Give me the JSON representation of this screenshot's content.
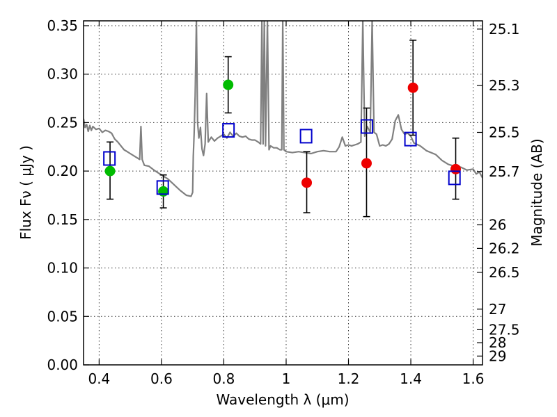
{
  "chart_data": {
    "type": "scatter",
    "title": "",
    "xlabel": "Wavelength  λ (μm)",
    "ylabel": "Flux  Fν  ( μJy )",
    "ylabel_right": "Magnitude (AB)",
    "xlim": [
      0.35,
      1.63
    ],
    "ylim": [
      0.0,
      0.355
    ],
    "grid": true,
    "legend": "none",
    "x_ticks": [
      0.4,
      0.6,
      0.8,
      1.0,
      1.2,
      1.4,
      1.6
    ],
    "x_tick_labels": [
      "0.4",
      "0.6",
      "0.8",
      "1",
      "1.2",
      "1.4",
      "1.6"
    ],
    "y_ticks": [
      0.0,
      0.05,
      0.1,
      0.15,
      0.2,
      0.25,
      0.3,
      0.35
    ],
    "y_tick_labels": [
      "0.00",
      "0.05",
      "0.10",
      "0.15",
      "0.20",
      "0.25",
      "0.30",
      "0.35"
    ],
    "right_ticks": [
      {
        "flux": 0.3465,
        "label": "25.1"
      },
      {
        "flux": 0.2884,
        "label": "25.3"
      },
      {
        "flux": 0.2399,
        "label": "25.5"
      },
      {
        "flux": 0.1995,
        "label": "25.7"
      },
      {
        "flux": 0.1445,
        "label": "26"
      },
      {
        "flux": 0.1202,
        "label": "26.2"
      },
      {
        "flux": 0.0955,
        "label": "26.5"
      },
      {
        "flux": 0.0575,
        "label": "27"
      },
      {
        "flux": 0.0363,
        "label": "27.5"
      },
      {
        "flux": 0.0229,
        "label": "28"
      },
      {
        "flux": 0.0091,
        "label": "29"
      }
    ],
    "series": [
      {
        "marker": "green-circle",
        "color": "#00bb00",
        "points": [
          {
            "x": 0.435,
            "y": 0.2,
            "err_lo": 0.171,
            "err_hi": 0.23
          },
          {
            "x": 0.606,
            "y": 0.179,
            "err_lo": 0.162,
            "err_hi": 0.196
          },
          {
            "x": 0.814,
            "y": 0.289,
            "err_lo": 0.26,
            "err_hi": 0.318
          }
        ]
      },
      {
        "marker": "red-circle",
        "color": "#ee0000",
        "points": [
          {
            "x": 1.066,
            "y": 0.188,
            "err_lo": 0.157,
            "err_hi": 0.22
          },
          {
            "x": 1.258,
            "y": 0.208,
            "err_lo": 0.153,
            "err_hi": 0.265
          },
          {
            "x": 1.407,
            "y": 0.286,
            "err_lo": 0.237,
            "err_hi": 0.335
          },
          {
            "x": 1.544,
            "y": 0.202,
            "err_lo": 0.171,
            "err_hi": 0.234
          }
        ]
      },
      {
        "marker": "blue-open-square",
        "color": "#0000cc",
        "points": [
          {
            "x": 0.433,
            "y": 0.213
          },
          {
            "x": 0.604,
            "y": 0.183
          },
          {
            "x": 0.815,
            "y": 0.242
          },
          {
            "x": 1.064,
            "y": 0.236
          },
          {
            "x": 1.259,
            "y": 0.246
          },
          {
            "x": 1.399,
            "y": 0.233
          },
          {
            "x": 1.54,
            "y": 0.193
          }
        ]
      }
    ],
    "spectrum": {
      "color": "#808080",
      "points": [
        [
          0.35,
          0.254
        ],
        [
          0.355,
          0.245
        ],
        [
          0.36,
          0.248
        ],
        [
          0.365,
          0.241
        ],
        [
          0.37,
          0.247
        ],
        [
          0.375,
          0.242
        ],
        [
          0.38,
          0.246
        ],
        [
          0.39,
          0.243
        ],
        [
          0.4,
          0.244
        ],
        [
          0.41,
          0.24
        ],
        [
          0.42,
          0.242
        ],
        [
          0.43,
          0.241
        ],
        [
          0.44,
          0.239
        ],
        [
          0.45,
          0.233
        ],
        [
          0.46,
          0.23
        ],
        [
          0.47,
          0.226
        ],
        [
          0.48,
          0.222
        ],
        [
          0.49,
          0.22
        ],
        [
          0.5,
          0.218
        ],
        [
          0.51,
          0.216
        ],
        [
          0.52,
          0.214
        ],
        [
          0.53,
          0.212
        ],
        [
          0.534,
          0.246
        ],
        [
          0.538,
          0.212
        ],
        [
          0.545,
          0.206
        ],
        [
          0.56,
          0.205
        ],
        [
          0.58,
          0.2
        ],
        [
          0.6,
          0.196
        ],
        [
          0.62,
          0.192
        ],
        [
          0.64,
          0.186
        ],
        [
          0.66,
          0.18
        ],
        [
          0.68,
          0.175
        ],
        [
          0.695,
          0.174
        ],
        [
          0.7,
          0.178
        ],
        [
          0.702,
          0.215
        ],
        [
          0.705,
          0.24
        ],
        [
          0.708,
          0.278
        ],
        [
          0.712,
          0.355
        ],
        [
          0.716,
          0.25
        ],
        [
          0.72,
          0.234
        ],
        [
          0.725,
          0.245
        ],
        [
          0.73,
          0.223
        ],
        [
          0.735,
          0.216
        ],
        [
          0.74,
          0.228
        ],
        [
          0.745,
          0.28
        ],
        [
          0.75,
          0.23
        ],
        [
          0.76,
          0.235
        ],
        [
          0.77,
          0.231
        ],
        [
          0.78,
          0.234
        ],
        [
          0.79,
          0.236
        ],
        [
          0.8,
          0.238
        ],
        [
          0.81,
          0.234
        ],
        [
          0.82,
          0.24
        ],
        [
          0.83,
          0.236
        ],
        [
          0.84,
          0.239
        ],
        [
          0.85,
          0.236
        ],
        [
          0.86,
          0.235
        ],
        [
          0.87,
          0.236
        ],
        [
          0.88,
          0.233
        ],
        [
          0.89,
          0.232
        ],
        [
          0.9,
          0.232
        ],
        [
          0.91,
          0.23
        ],
        [
          0.918,
          0.228
        ],
        [
          0.922,
          0.355
        ],
        [
          0.926,
          0.228
        ],
        [
          0.93,
          0.355
        ],
        [
          0.934,
          0.226
        ],
        [
          0.94,
          0.355
        ],
        [
          0.945,
          0.222
        ],
        [
          0.95,
          0.226
        ],
        [
          0.96,
          0.224
        ],
        [
          0.97,
          0.224
        ],
        [
          0.98,
          0.222
        ],
        [
          0.986,
          0.222
        ],
        [
          0.989,
          0.355
        ],
        [
          0.993,
          0.222
        ],
        [
          1.0,
          0.22
        ],
        [
          1.02,
          0.219
        ],
        [
          1.04,
          0.22
        ],
        [
          1.06,
          0.219
        ],
        [
          1.08,
          0.218
        ],
        [
          1.1,
          0.22
        ],
        [
          1.12,
          0.221
        ],
        [
          1.14,
          0.22
        ],
        [
          1.16,
          0.22
        ],
        [
          1.17,
          0.225
        ],
        [
          1.18,
          0.235
        ],
        [
          1.19,
          0.226
        ],
        [
          1.2,
          0.227
        ],
        [
          1.21,
          0.226
        ],
        [
          1.22,
          0.227
        ],
        [
          1.23,
          0.228
        ],
        [
          1.24,
          0.23
        ],
        [
          1.246,
          0.355
        ],
        [
          1.252,
          0.236
        ],
        [
          1.26,
          0.246
        ],
        [
          1.27,
          0.24
        ],
        [
          1.276,
          0.355
        ],
        [
          1.282,
          0.24
        ],
        [
          1.29,
          0.238
        ],
        [
          1.3,
          0.226
        ],
        [
          1.31,
          0.227
        ],
        [
          1.32,
          0.226
        ],
        [
          1.33,
          0.228
        ],
        [
          1.34,
          0.233
        ],
        [
          1.35,
          0.252
        ],
        [
          1.36,
          0.258
        ],
        [
          1.37,
          0.243
        ],
        [
          1.38,
          0.238
        ],
        [
          1.39,
          0.239
        ],
        [
          1.4,
          0.236
        ],
        [
          1.41,
          0.229
        ],
        [
          1.43,
          0.226
        ],
        [
          1.45,
          0.221
        ],
        [
          1.48,
          0.217
        ],
        [
          1.5,
          0.211
        ],
        [
          1.52,
          0.207
        ],
        [
          1.54,
          0.205
        ],
        [
          1.56,
          0.204
        ],
        [
          1.58,
          0.201
        ],
        [
          1.6,
          0.202
        ],
        [
          1.61,
          0.197
        ],
        [
          1.62,
          0.199
        ],
        [
          1.63,
          0.193
        ]
      ]
    }
  }
}
